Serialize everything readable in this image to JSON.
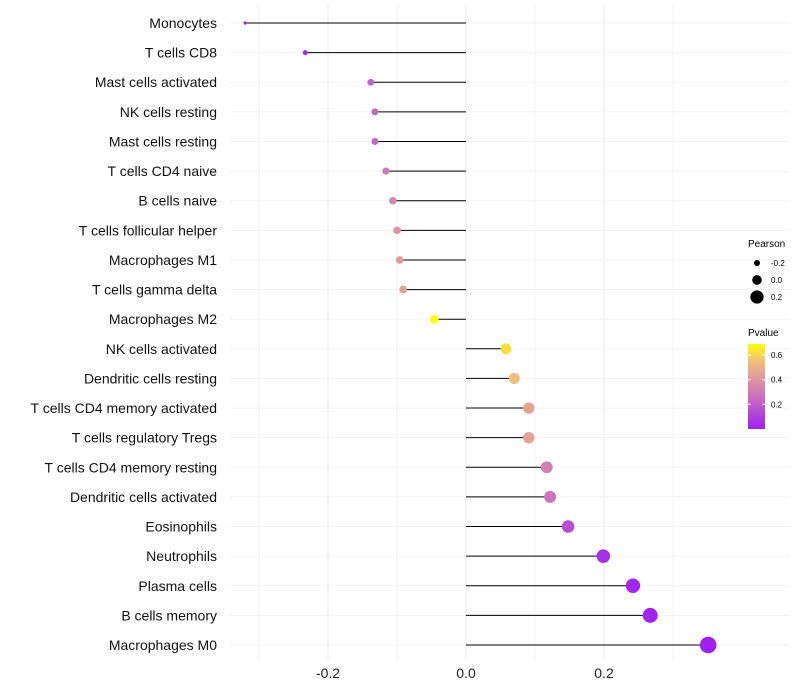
{
  "chart_data": {
    "type": "lollipop",
    "title": "",
    "xlabel": "",
    "ylabel": "",
    "xlim": [
      -0.33,
      0.36
    ],
    "xticks": [
      -0.2,
      0.0,
      0.2
    ],
    "xtick_labels": [
      "-0.2",
      "0.0",
      "0.2"
    ],
    "grid": true,
    "categories": [
      "Monocytes",
      "T cells CD8",
      "Mast cells activated",
      "NK cells resting",
      "Mast cells resting",
      "T cells CD4 naive",
      "B cells naive",
      "T cells follicular helper",
      "Macrophages M1",
      "T cells gamma delta",
      "Macrophages M2",
      "NK cells activated",
      "Dendritic cells resting",
      "T cells CD4 memory activated",
      "T cells regulatory  Tregs ",
      "T cells CD4 memory resting",
      "Dendritic cells activated",
      "Eosinophils",
      "Neutrophils",
      "Plasma cells",
      "B cells memory",
      "Macrophages M0"
    ],
    "pearson": [
      -0.32,
      -0.233,
      -0.138,
      -0.132,
      -0.132,
      -0.116,
      -0.106,
      -0.1,
      -0.096,
      -0.091,
      -0.046,
      0.058,
      0.07,
      0.091,
      0.091,
      0.117,
      0.122,
      0.148,
      0.199,
      0.242,
      0.267,
      0.351
    ],
    "pvalue": [
      0.02,
      0.04,
      0.22,
      0.24,
      0.24,
      0.3,
      0.35,
      0.4,
      0.43,
      0.45,
      0.69,
      0.62,
      0.55,
      0.45,
      0.45,
      0.32,
      0.28,
      0.15,
      0.05,
      0.02,
      0.01,
      0.001
    ],
    "legend": {
      "size_title": "Pearson",
      "size_labels": [
        "-0.2",
        "0.0",
        "0.2"
      ],
      "size_values": [
        -0.2,
        0.0,
        0.2
      ],
      "color_title": "Pvalue",
      "color_labels": [
        "0.6",
        "0.4",
        "0.2"
      ],
      "color_values": [
        0.6,
        0.4,
        0.2
      ],
      "color_range": [
        0.0,
        0.69
      ],
      "colors": [
        "#a020f0",
        "#d07ab8",
        "#f0bf7c",
        "#ffff00"
      ],
      "placement": "right"
    }
  }
}
